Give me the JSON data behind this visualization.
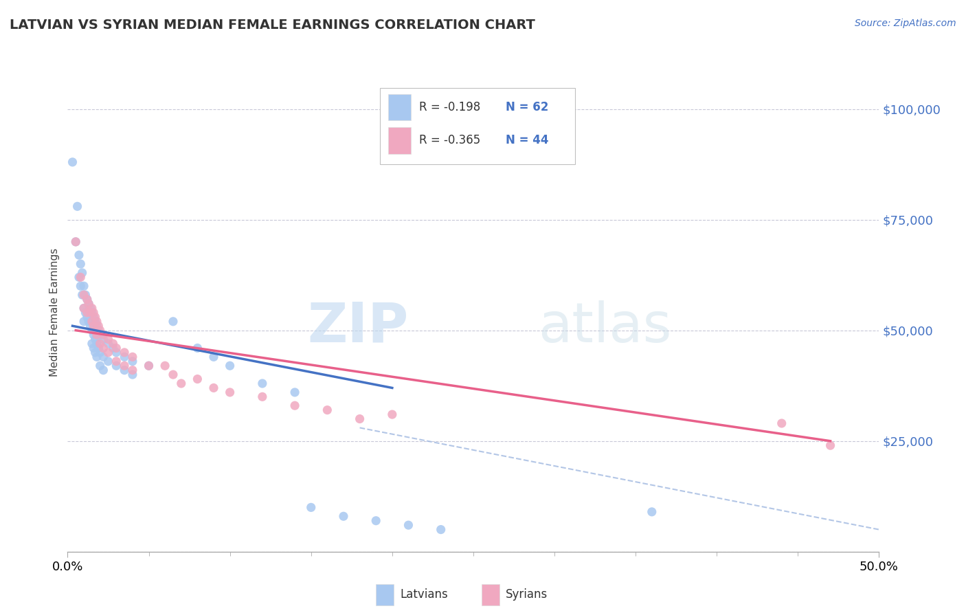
{
  "title": "LATVIAN VS SYRIAN MEDIAN FEMALE EARNINGS CORRELATION CHART",
  "source": "Source: ZipAtlas.com",
  "ylabel": "Median Female Earnings",
  "y_ticks": [
    0,
    25000,
    50000,
    75000,
    100000
  ],
  "y_tick_labels": [
    "",
    "$25,000",
    "$50,000",
    "$75,000",
    "$100,000"
  ],
  "x_range": [
    0.0,
    0.5
  ],
  "y_range": [
    0,
    108000
  ],
  "latvian_color": "#a8c8f0",
  "syrian_color": "#f0a8c0",
  "latvian_line_color": "#4472c4",
  "syrian_line_color": "#e8608a",
  "dashed_line_color": "#a0b8e0",
  "watermark_zip": "ZIP",
  "watermark_atlas": "atlas",
  "legend_entries": [
    {
      "color": "#a8c8f0",
      "R": "R = -0.198",
      "N": "N = 62"
    },
    {
      "color": "#f0a8c0",
      "R": "R = -0.365",
      "N": "N = 44"
    }
  ],
  "latvians_label": "Latvians",
  "syrians_label": "Syrians",
  "latvian_points": [
    [
      0.003,
      88000
    ],
    [
      0.005,
      70000
    ],
    [
      0.006,
      78000
    ],
    [
      0.007,
      67000
    ],
    [
      0.007,
      62000
    ],
    [
      0.008,
      65000
    ],
    [
      0.008,
      60000
    ],
    [
      0.009,
      63000
    ],
    [
      0.009,
      58000
    ],
    [
      0.01,
      60000
    ],
    [
      0.01,
      55000
    ],
    [
      0.01,
      52000
    ],
    [
      0.011,
      58000
    ],
    [
      0.011,
      54000
    ],
    [
      0.012,
      57000
    ],
    [
      0.012,
      53000
    ],
    [
      0.013,
      56000
    ],
    [
      0.013,
      52000
    ],
    [
      0.014,
      55000
    ],
    [
      0.014,
      51000
    ],
    [
      0.015,
      54000
    ],
    [
      0.015,
      50000
    ],
    [
      0.015,
      47000
    ],
    [
      0.016,
      53000
    ],
    [
      0.016,
      49000
    ],
    [
      0.016,
      46000
    ],
    [
      0.017,
      52000
    ],
    [
      0.017,
      48000
    ],
    [
      0.017,
      45000
    ],
    [
      0.018,
      51000
    ],
    [
      0.018,
      47000
    ],
    [
      0.018,
      44000
    ],
    [
      0.019,
      50000
    ],
    [
      0.019,
      46000
    ],
    [
      0.02,
      49000
    ],
    [
      0.02,
      45000
    ],
    [
      0.02,
      42000
    ],
    [
      0.022,
      48000
    ],
    [
      0.022,
      44000
    ],
    [
      0.022,
      41000
    ],
    [
      0.025,
      47000
    ],
    [
      0.025,
      43000
    ],
    [
      0.028,
      46000
    ],
    [
      0.03,
      45000
    ],
    [
      0.03,
      42000
    ],
    [
      0.035,
      44000
    ],
    [
      0.035,
      41000
    ],
    [
      0.04,
      43000
    ],
    [
      0.04,
      40000
    ],
    [
      0.05,
      42000
    ],
    [
      0.065,
      52000
    ],
    [
      0.08,
      46000
    ],
    [
      0.09,
      44000
    ],
    [
      0.1,
      42000
    ],
    [
      0.12,
      38000
    ],
    [
      0.14,
      36000
    ],
    [
      0.15,
      10000
    ],
    [
      0.17,
      8000
    ],
    [
      0.19,
      7000
    ],
    [
      0.21,
      6000
    ],
    [
      0.23,
      5000
    ],
    [
      0.36,
      9000
    ]
  ],
  "syrian_points": [
    [
      0.005,
      70000
    ],
    [
      0.008,
      62000
    ],
    [
      0.01,
      58000
    ],
    [
      0.01,
      55000
    ],
    [
      0.012,
      57000
    ],
    [
      0.012,
      54000
    ],
    [
      0.013,
      56000
    ],
    [
      0.014,
      54000
    ],
    [
      0.015,
      55000
    ],
    [
      0.015,
      52000
    ],
    [
      0.016,
      54000
    ],
    [
      0.016,
      51000
    ],
    [
      0.017,
      53000
    ],
    [
      0.017,
      50000
    ],
    [
      0.018,
      52000
    ],
    [
      0.018,
      49000
    ],
    [
      0.019,
      51000
    ],
    [
      0.02,
      50000
    ],
    [
      0.02,
      47000
    ],
    [
      0.022,
      49000
    ],
    [
      0.022,
      46000
    ],
    [
      0.025,
      48000
    ],
    [
      0.025,
      45000
    ],
    [
      0.028,
      47000
    ],
    [
      0.03,
      46000
    ],
    [
      0.03,
      43000
    ],
    [
      0.035,
      45000
    ],
    [
      0.035,
      42000
    ],
    [
      0.04,
      44000
    ],
    [
      0.04,
      41000
    ],
    [
      0.05,
      42000
    ],
    [
      0.06,
      42000
    ],
    [
      0.065,
      40000
    ],
    [
      0.07,
      38000
    ],
    [
      0.08,
      39000
    ],
    [
      0.09,
      37000
    ],
    [
      0.1,
      36000
    ],
    [
      0.12,
      35000
    ],
    [
      0.14,
      33000
    ],
    [
      0.16,
      32000
    ],
    [
      0.18,
      30000
    ],
    [
      0.2,
      31000
    ],
    [
      0.44,
      29000
    ],
    [
      0.47,
      24000
    ]
  ],
  "lat_line_x": [
    0.003,
    0.2
  ],
  "lat_line_y": [
    51000,
    37000
  ],
  "syr_line_x": [
    0.005,
    0.47
  ],
  "syr_line_y": [
    50000,
    25000
  ],
  "dash_line_x": [
    0.18,
    0.5
  ],
  "dash_line_y": [
    28000,
    5000
  ]
}
